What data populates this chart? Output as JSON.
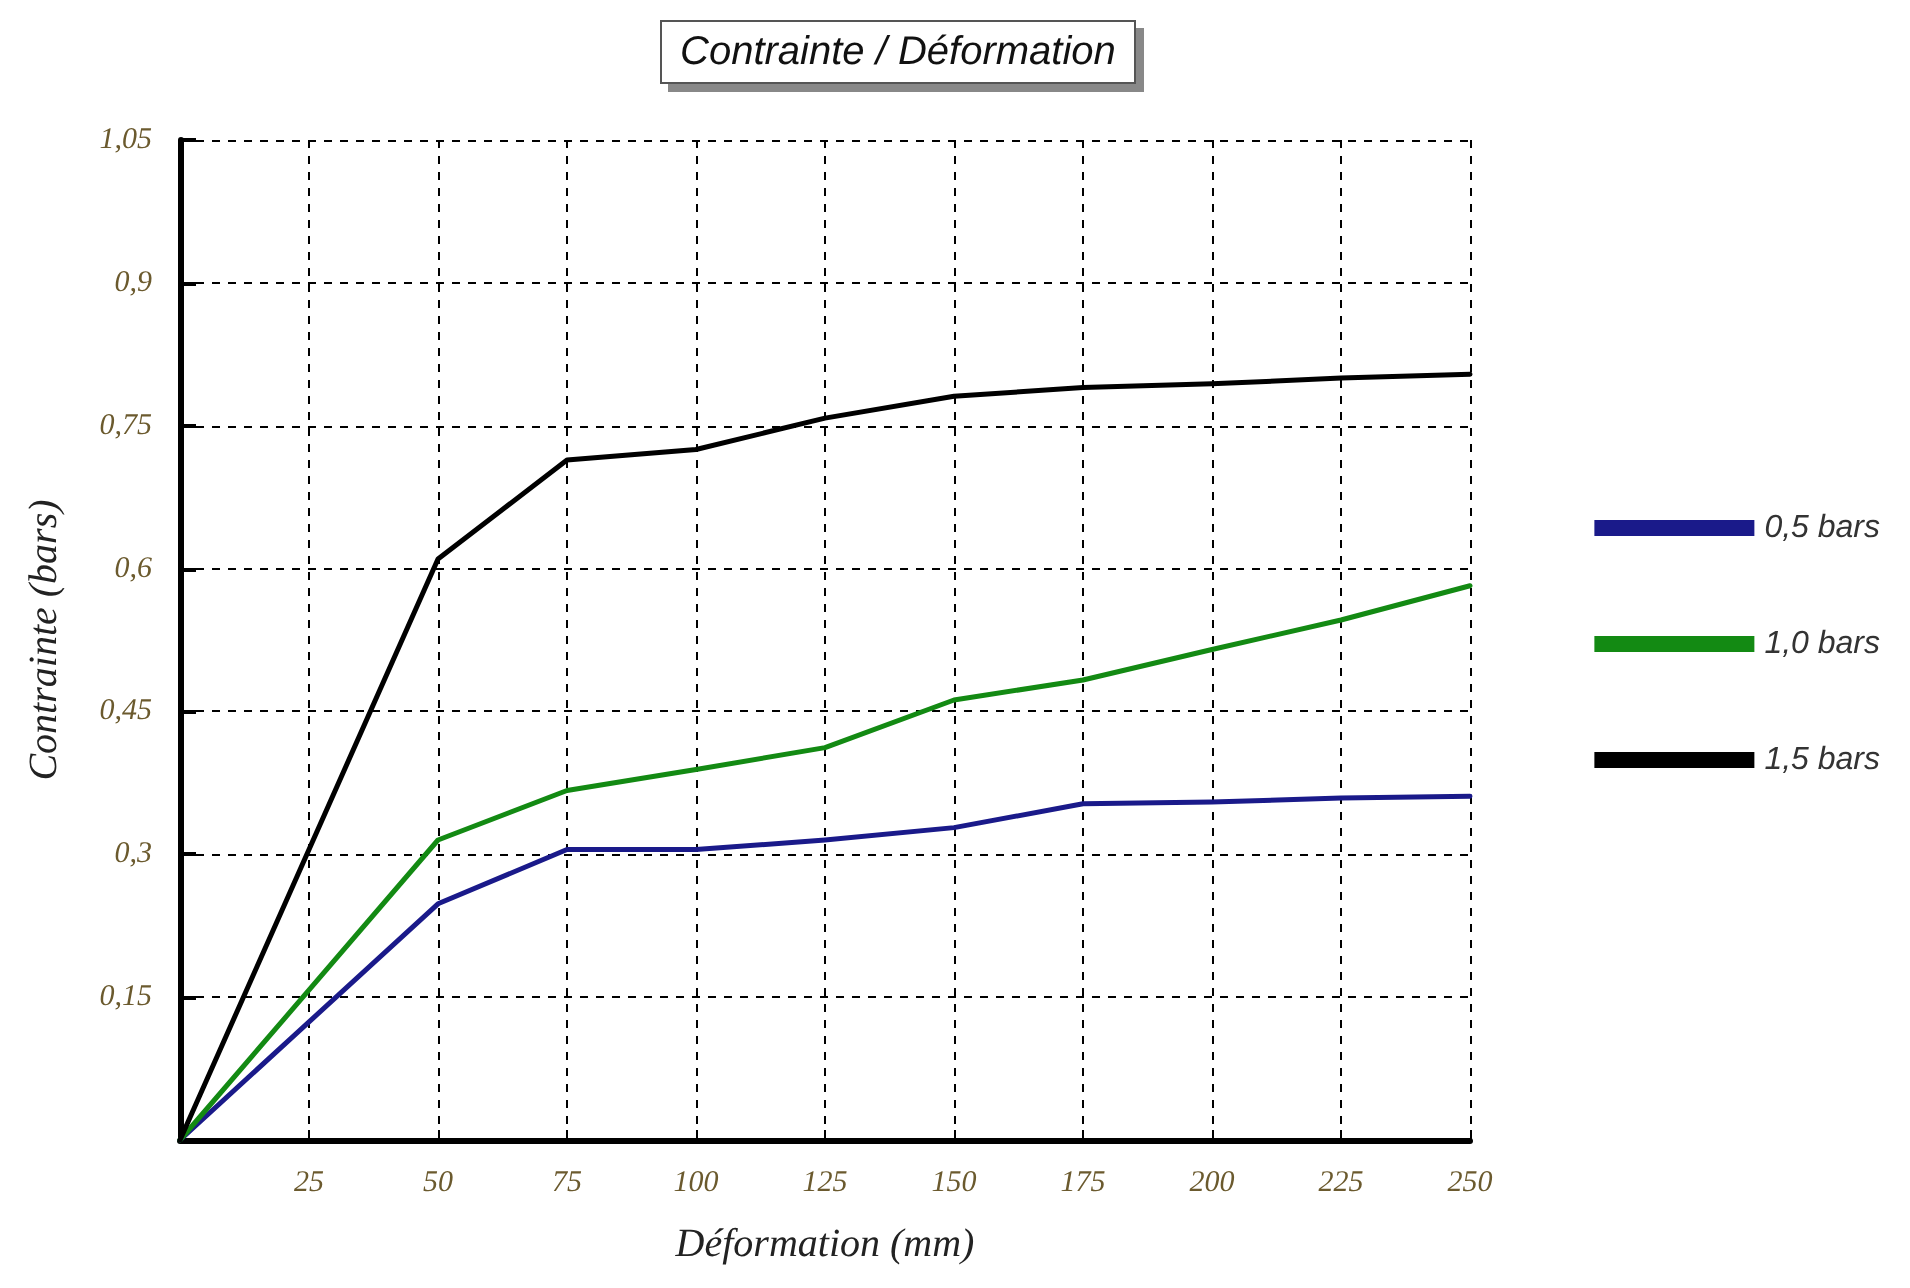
{
  "chart_data": {
    "type": "line",
    "title": "Contrainte / Déformation",
    "xlabel": "Déformation (mm)",
    "ylabel": "Contrainte (bars)",
    "x": [
      0,
      50,
      75,
      100,
      125,
      150,
      175,
      200,
      225,
      250
    ],
    "series": [
      {
        "name": "0,5 bars",
        "color": "#1a1a8a",
        "values": [
          0,
          0.248,
          0.305,
          0.305,
          0.315,
          0.328,
          0.353,
          0.355,
          0.359,
          0.361
        ]
      },
      {
        "name": "1,0 bars",
        "color": "#138a13",
        "values": [
          0,
          0.315,
          0.367,
          0.389,
          0.412,
          0.462,
          0.483,
          0.515,
          0.546,
          0.582
        ]
      },
      {
        "name": "1,5 bars",
        "color": "#000000",
        "values": [
          0,
          0.61,
          0.714,
          0.725,
          0.758,
          0.781,
          0.79,
          0.794,
          0.8,
          0.804
        ]
      }
    ],
    "xlim": [
      0,
      250
    ],
    "xticks": [
      25,
      50,
      75,
      100,
      125,
      150,
      175,
      200,
      225,
      250
    ],
    "ylim": [
      0,
      1.05
    ],
    "yticks": [
      {
        "value": 0,
        "label": null
      },
      {
        "value": 0.15,
        "label": "0,15"
      },
      {
        "value": 0.3,
        "label": "0,3"
      },
      {
        "value": 0.45,
        "label": "0,45"
      },
      {
        "value": 0.6,
        "label": "0,6"
      },
      {
        "value": 0.75,
        "label": "0,75"
      },
      {
        "value": 0.9,
        "label": "0,9"
      },
      {
        "value": 1.05,
        "label": "1,05"
      }
    ],
    "grid": true,
    "legend": "right",
    "marker": "none",
    "line_style": "solid"
  }
}
